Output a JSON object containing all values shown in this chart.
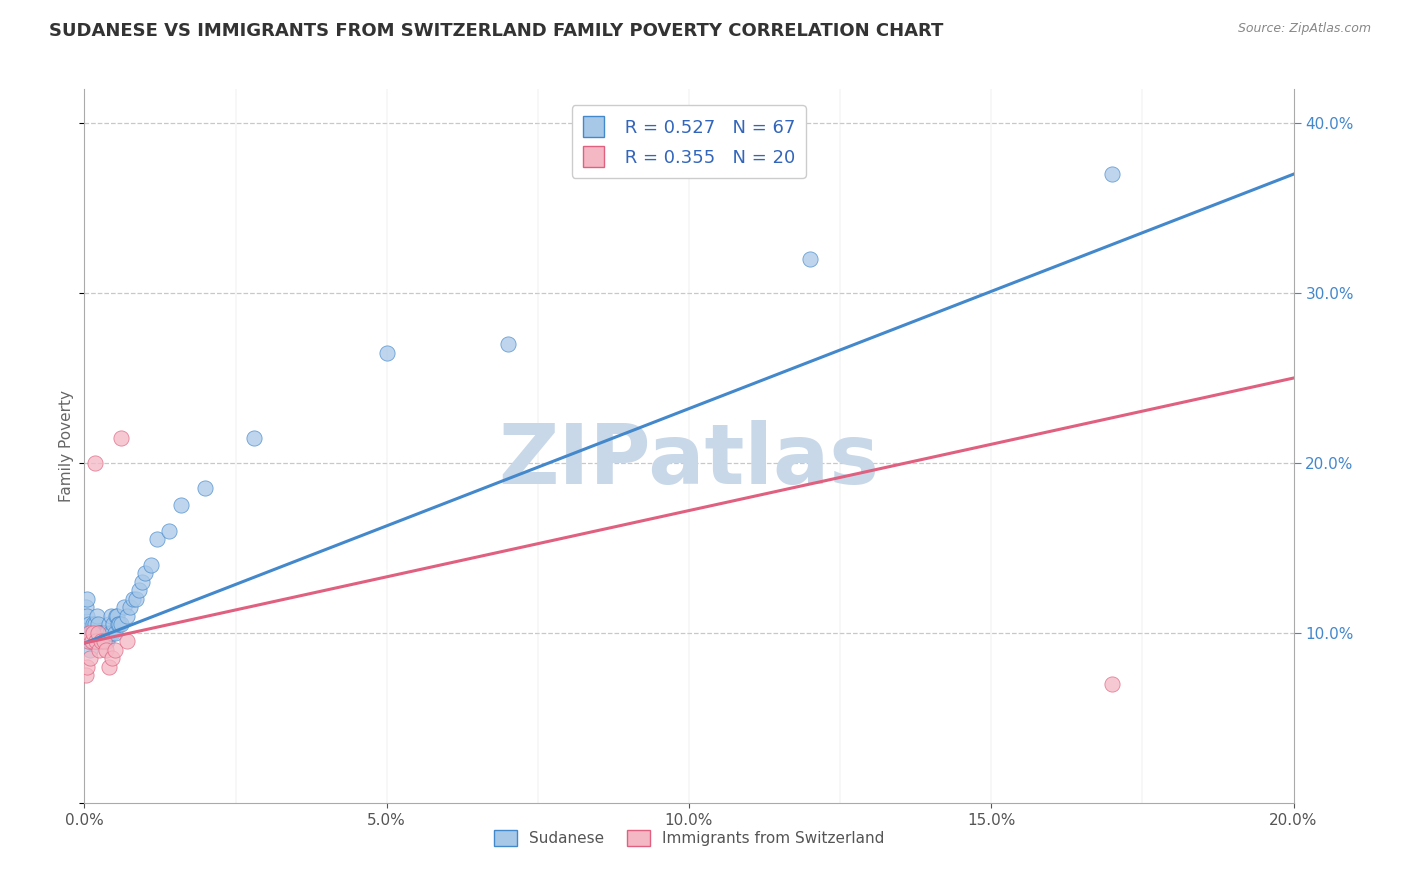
{
  "title": "SUDANESE VS IMMIGRANTS FROM SWITZERLAND FAMILY POVERTY CORRELATION CHART",
  "source_text": "Source: ZipAtlas.com",
  "ylabel": "Family Poverty",
  "xlim": [
    0.0,
    0.2
  ],
  "ylim": [
    0.0,
    0.42
  ],
  "blue_R": 0.527,
  "blue_N": 67,
  "pink_R": 0.355,
  "pink_N": 20,
  "blue_color": "#a8c8e8",
  "pink_color": "#f4b8c4",
  "blue_line_color": "#4488cc",
  "pink_line_color": "#e06080",
  "watermark": "ZIPatlas",
  "legend_label_blue": "Sudanese",
  "legend_label_pink": "Immigrants from Switzerland",
  "blue_scatter_x": [
    0.0002,
    0.0003,
    0.0004,
    0.0005,
    0.0006,
    0.0007,
    0.0008,
    0.0009,
    0.001,
    0.001,
    0.0011,
    0.0012,
    0.0013,
    0.0014,
    0.0015,
    0.0016,
    0.0017,
    0.0018,
    0.0019,
    0.002,
    0.0021,
    0.0022,
    0.0023,
    0.0024,
    0.0025,
    0.0026,
    0.0027,
    0.0028,
    0.0029,
    0.003,
    0.0031,
    0.0032,
    0.0033,
    0.0034,
    0.0035,
    0.0036,
    0.0037,
    0.0038,
    0.004,
    0.0042,
    0.0044,
    0.0046,
    0.0048,
    0.005,
    0.0052,
    0.0054,
    0.0056,
    0.0058,
    0.006,
    0.0065,
    0.007,
    0.0075,
    0.008,
    0.0085,
    0.009,
    0.0095,
    0.01,
    0.011,
    0.012,
    0.014,
    0.016,
    0.02,
    0.028,
    0.05,
    0.07,
    0.12,
    0.17
  ],
  "blue_scatter_y": [
    0.115,
    0.105,
    0.11,
    0.12,
    0.1,
    0.095,
    0.105,
    0.095,
    0.09,
    0.1,
    0.095,
    0.1,
    0.1,
    0.105,
    0.1,
    0.095,
    0.105,
    0.1,
    0.095,
    0.095,
    0.11,
    0.105,
    0.095,
    0.1,
    0.095,
    0.1,
    0.095,
    0.1,
    0.1,
    0.095,
    0.1,
    0.095,
    0.1,
    0.1,
    0.095,
    0.1,
    0.1,
    0.095,
    0.105,
    0.1,
    0.11,
    0.1,
    0.105,
    0.1,
    0.11,
    0.11,
    0.105,
    0.105,
    0.105,
    0.115,
    0.11,
    0.115,
    0.12,
    0.12,
    0.125,
    0.13,
    0.135,
    0.14,
    0.155,
    0.16,
    0.175,
    0.185,
    0.215,
    0.265,
    0.27,
    0.32,
    0.37
  ],
  "pink_scatter_x": [
    0.0002,
    0.0004,
    0.0006,
    0.0008,
    0.001,
    0.0012,
    0.0015,
    0.0018,
    0.002,
    0.0022,
    0.0025,
    0.0028,
    0.0032,
    0.0036,
    0.004,
    0.0045,
    0.005,
    0.006,
    0.007,
    0.17
  ],
  "pink_scatter_y": [
    0.075,
    0.08,
    0.095,
    0.1,
    0.085,
    0.095,
    0.1,
    0.2,
    0.095,
    0.1,
    0.09,
    0.095,
    0.095,
    0.09,
    0.08,
    0.085,
    0.09,
    0.215,
    0.095,
    0.07
  ],
  "blue_line_x0": 0.0,
  "blue_line_y0": 0.094,
  "blue_line_x1": 0.2,
  "blue_line_y1": 0.37,
  "pink_line_x0": 0.0,
  "pink_line_y0": 0.094,
  "pink_line_x1": 0.2,
  "pink_line_y1": 0.25,
  "grid_color": "#c8c8c8",
  "background_color": "#ffffff",
  "title_fontsize": 13,
  "axis_label_fontsize": 11,
  "tick_fontsize": 11,
  "right_tick_color": "#4488cc",
  "watermark_color": "#c8d8e8",
  "watermark_fontsize": 60
}
